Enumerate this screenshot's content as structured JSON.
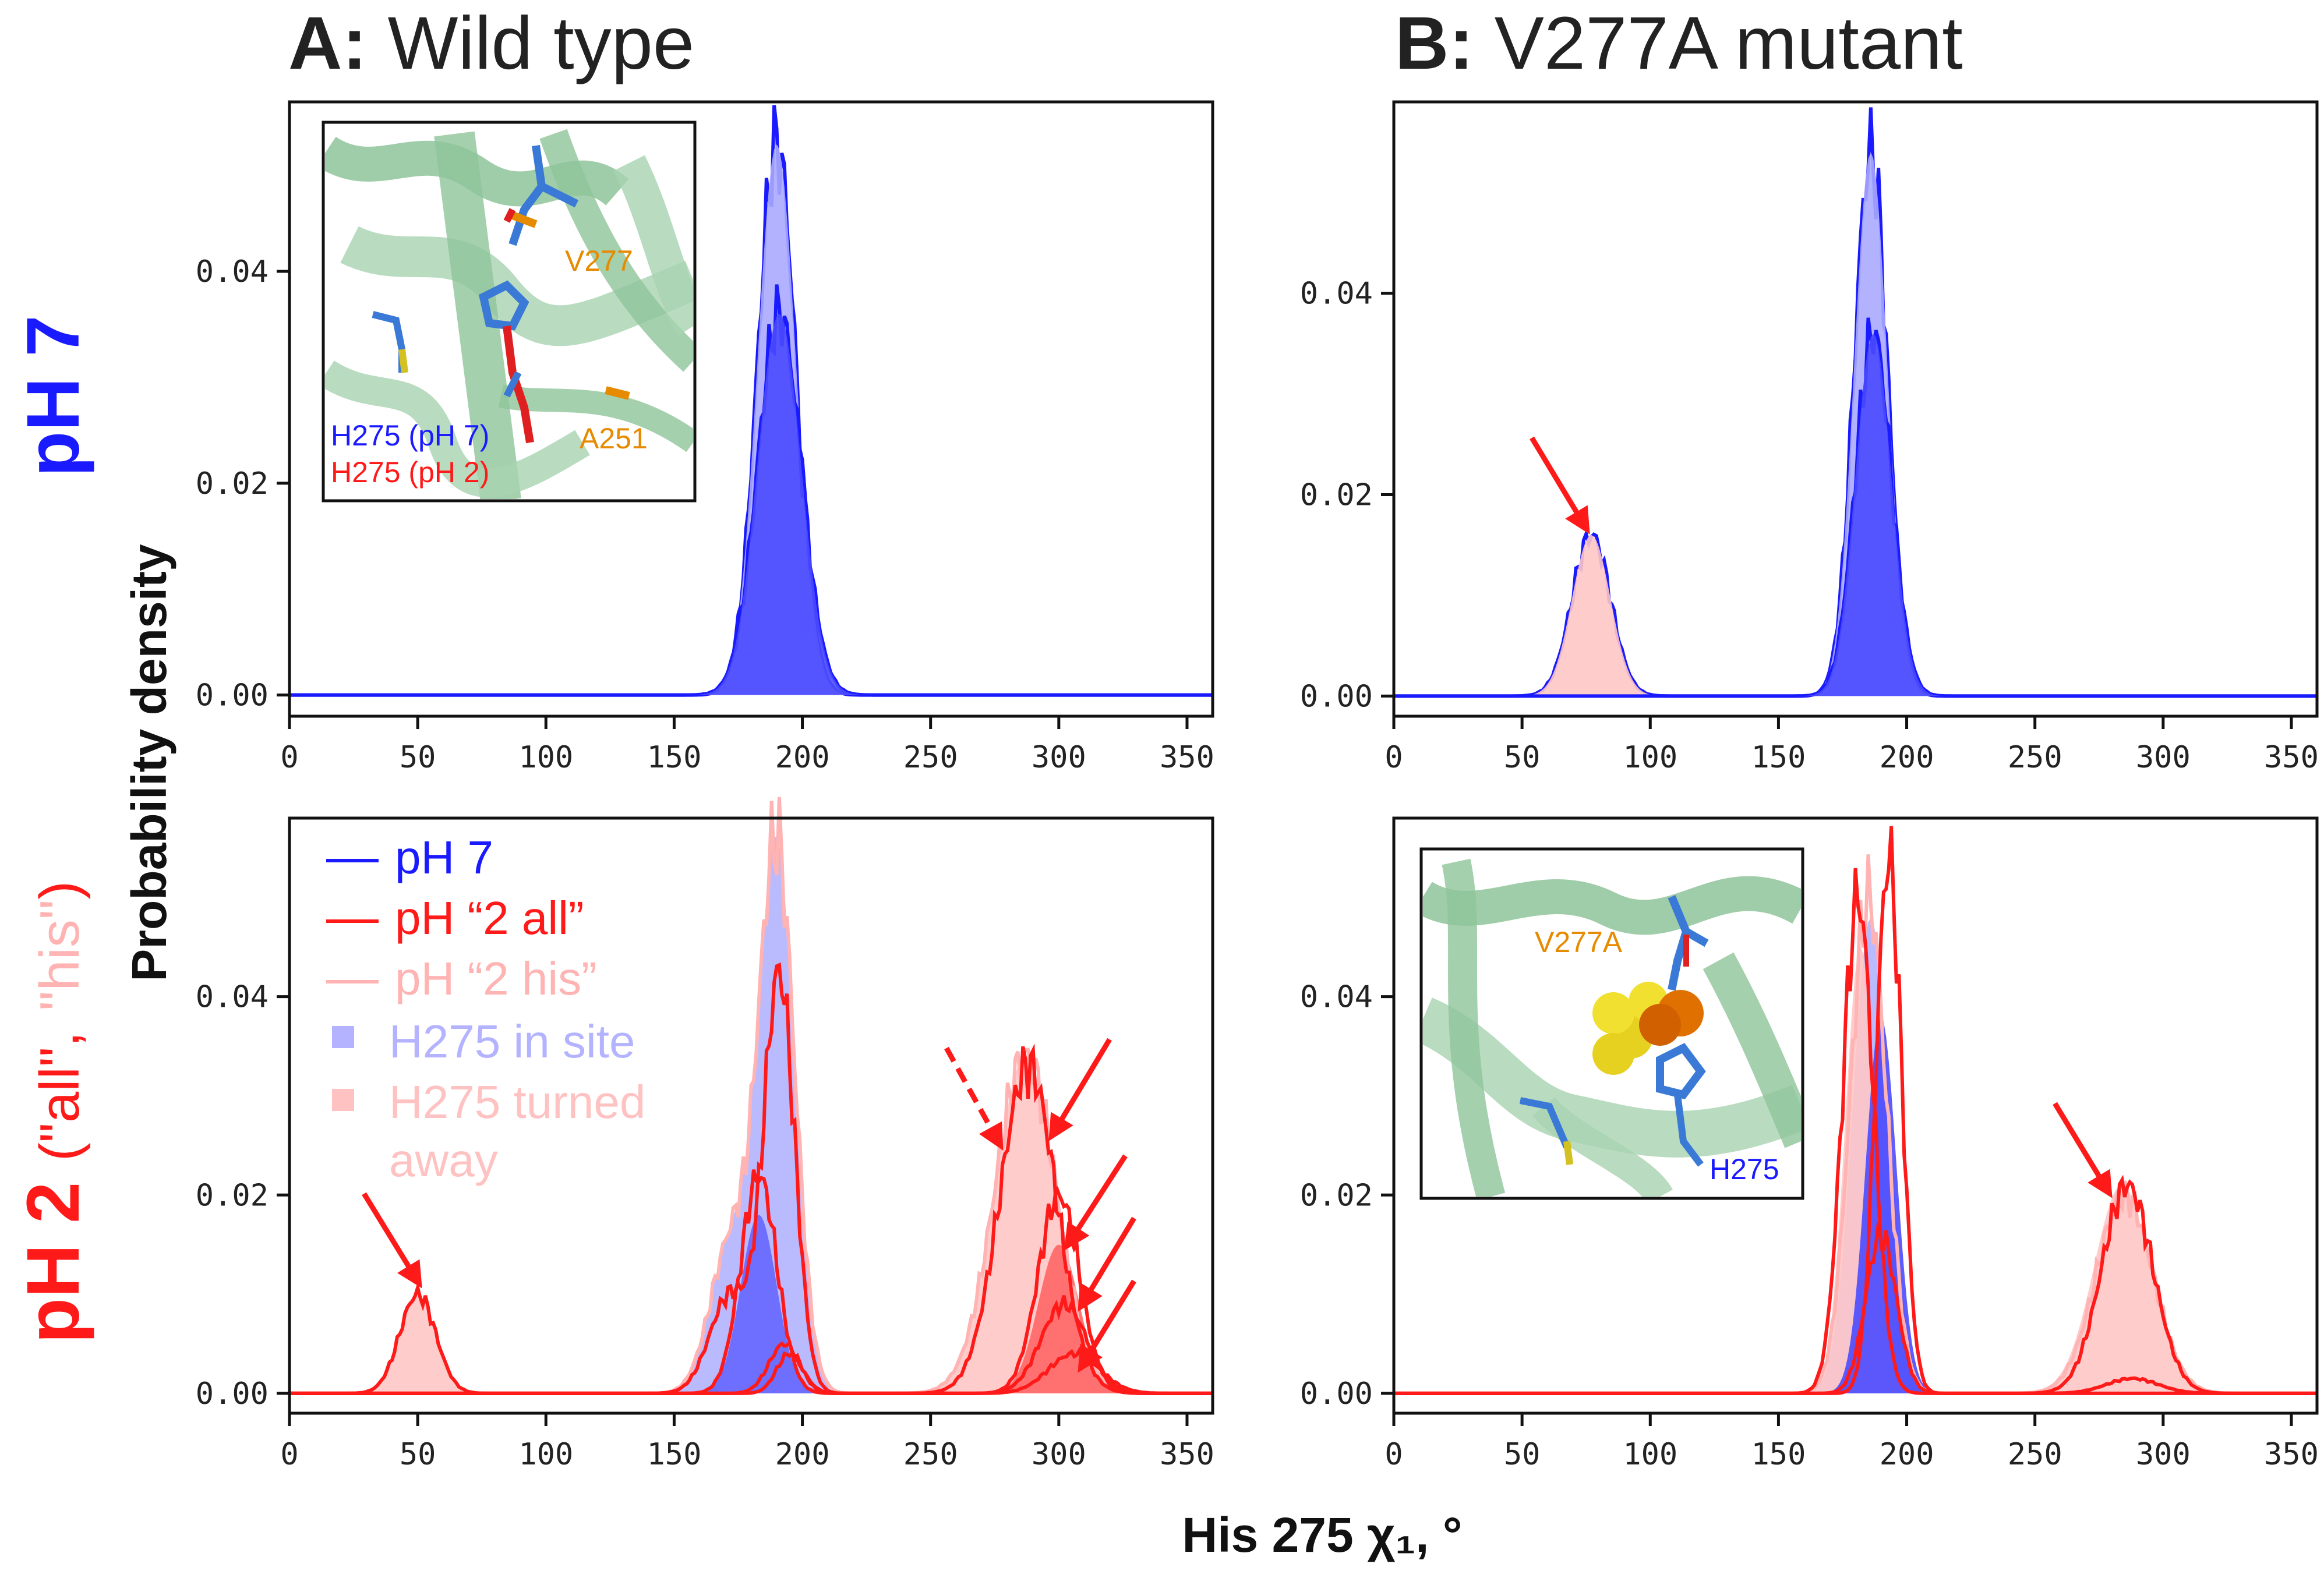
{
  "figure": {
    "panel_a_letter": "A:",
    "panel_a_title": "Wild type",
    "panel_b_letter": "B:",
    "panel_b_title": "V277A mutant",
    "row_top_label": "pH 7",
    "row_bottom_label_main": "pH 2",
    "row_bottom_label_paren_open": "(",
    "row_bottom_label_all": "\"all\"",
    "row_bottom_label_comma": ",",
    "row_bottom_label_his": "\"his\"",
    "row_bottom_label_paren_close": ")",
    "ylabel": "Probability density",
    "xlabel": "His 275 χ₁, °"
  },
  "legend": {
    "items": [
      {
        "label": "pH 7",
        "color": "#1a1aff",
        "kind": "line"
      },
      {
        "label": "pH “2 all”",
        "color": "#ff1a1a",
        "kind": "line"
      },
      {
        "label": "pH “2 his”",
        "color": "#ffb3b3",
        "kind": "line"
      },
      {
        "label": "H275 in site",
        "color": "#b3b3ff",
        "kind": "patch"
      },
      {
        "label": "H275 turned",
        "label2": "away",
        "color": "#ffc2c2",
        "kind": "patch"
      }
    ]
  },
  "insets": {
    "wt": {
      "label_v277": "V277",
      "label_a251": "A251",
      "label_h275_ph7": "H275 (pH 7)",
      "label_h275_ph2": "H275 (pH 2)"
    },
    "mut": {
      "label_v277a": "V277A",
      "label_h275": "H275"
    }
  },
  "colors": {
    "blue": "#1a1aff",
    "blue_fill": "#4a4aff",
    "blue_light": "#aaaaff",
    "red": "#ff1a1a",
    "pink": "#ffb3b3",
    "pink_fill": "#ffc7c7",
    "orange": "#e68a00",
    "green_protein": "#8fc49a"
  },
  "chart_data": [
    {
      "id": "wt_ph7",
      "type": "area",
      "title": "A: Wild type — pH 7",
      "xlim": [
        0,
        360
      ],
      "ylim": [
        -0.002,
        0.056
      ],
      "xticks": [
        0,
        50,
        100,
        150,
        200,
        250,
        300,
        350
      ],
      "yticks": [
        "0.00",
        "0.02",
        "0.04"
      ],
      "series": [
        {
          "name": "pH 7 total",
          "style": "line",
          "color": "#1a1aff",
          "peaks": [
            {
              "mu": 190,
              "sigma": 7.5,
              "amp": 0.052
            }
          ]
        },
        {
          "name": "H275 in site (pH 7)",
          "style": "fill",
          "color": "#aaaaff",
          "peaks": [
            {
              "mu": 190,
              "sigma": 7.5,
              "amp": 0.052
            }
          ]
        },
        {
          "name": "pH 7 secondary",
          "style": "line",
          "color": "#1a1aff",
          "peaks": [
            {
              "mu": 191,
              "sigma": 8.5,
              "amp": 0.036
            }
          ]
        },
        {
          "name": "pH 7 secondary fill",
          "style": "fill",
          "color": "#4a4aff",
          "peaks": [
            {
              "mu": 191,
              "sigma": 8.5,
              "amp": 0.036
            }
          ]
        }
      ]
    },
    {
      "id": "mut_ph7",
      "type": "area",
      "title": "B: V277A mutant — pH 7",
      "xlim": [
        0,
        360
      ],
      "ylim": [
        -0.002,
        0.059
      ],
      "xticks": [
        0,
        50,
        100,
        150,
        200,
        250,
        300,
        350
      ],
      "yticks": [
        "0.00",
        "0.02",
        "0.04"
      ],
      "series": [
        {
          "name": "pH 7 total",
          "style": "line",
          "color": "#1a1aff",
          "peaks": [
            {
              "mu": 77,
              "sigma": 7.5,
              "amp": 0.016
            },
            {
              "mu": 186,
              "sigma": 6.5,
              "amp": 0.054
            }
          ]
        },
        {
          "name": "H275 turned away (pH 7)",
          "style": "fill",
          "color": "#ffc7c7",
          "peaks": [
            {
              "mu": 77,
              "sigma": 7.5,
              "amp": 0.016
            }
          ]
        },
        {
          "name": "H275 in site (pH 7)",
          "style": "fill",
          "color": "#aaaaff",
          "peaks": [
            {
              "mu": 186,
              "sigma": 6.5,
              "amp": 0.054
            }
          ]
        },
        {
          "name": "pH 7 secondary",
          "style": "line",
          "color": "#1a1aff",
          "peaks": [
            {
              "mu": 187,
              "sigma": 7.0,
              "amp": 0.036
            }
          ]
        },
        {
          "name": "pH 7 secondary fill",
          "style": "fill",
          "color": "#4a4aff",
          "peaks": [
            {
              "mu": 187,
              "sigma": 7.0,
              "amp": 0.036
            }
          ]
        }
      ]
    },
    {
      "id": "wt_ph2",
      "type": "area",
      "title": "A: Wild type — pH 2",
      "xlim": [
        0,
        360
      ],
      "ylim": [
        -0.002,
        0.058
      ],
      "xticks": [
        0,
        50,
        100,
        150,
        200,
        250,
        300,
        350
      ],
      "yticks": [
        "0.00",
        "0.02",
        "0.04"
      ],
      "series": [
        {
          "name": "pH 2 his in site",
          "style": "fill",
          "color": "#b3b3ff",
          "peaks": [
            {
              "mu": 190,
              "sigma": 7,
              "amp": 0.055
            },
            {
              "mu": 172,
              "sigma": 8,
              "amp": 0.015
            }
          ]
        },
        {
          "name": "pH 2 his turned away",
          "style": "fill",
          "color": "#ffc7c7",
          "peaks": [
            {
              "mu": 287,
              "sigma": 12,
              "amp": 0.034
            },
            {
              "mu": 50,
              "sigma": 7,
              "amp": 0.01
            }
          ]
        },
        {
          "name": "pH 2 all in site",
          "style": "fill",
          "color": "#6666ff",
          "peaks": [
            {
              "mu": 183,
              "sigma": 7,
              "amp": 0.018
            }
          ]
        },
        {
          "name": "pH 2 all turned away",
          "style": "fill",
          "color": "#ff6666",
          "peaks": [
            {
              "mu": 300,
              "sigma": 8,
              "amp": 0.015
            }
          ]
        },
        {
          "name": "pH 2 his line",
          "style": "line",
          "color": "#ffb3b3",
          "peaks": [
            {
              "mu": 190,
              "sigma": 7,
              "amp": 0.055
            },
            {
              "mu": 287,
              "sigma": 12,
              "amp": 0.034
            },
            {
              "mu": 172,
              "sigma": 8,
              "amp": 0.015
            }
          ]
        },
        {
          "name": "pH 2 all line 1",
          "style": "line",
          "color": "#ff1a1a",
          "peaks": [
            {
              "mu": 191,
              "sigma": 6,
              "amp": 0.042
            },
            {
              "mu": 288,
              "sigma": 11,
              "amp": 0.033
            },
            {
              "mu": 50,
              "sigma": 7,
              "amp": 0.01
            },
            {
              "mu": 172,
              "sigma": 8,
              "amp": 0.01
            }
          ]
        },
        {
          "name": "pH 2 all line 2",
          "style": "line",
          "color": "#ff1a1a",
          "peaks": [
            {
              "mu": 183,
              "sigma": 7,
              "amp": 0.022
            },
            {
              "mu": 300,
              "sigma": 8,
              "amp": 0.02
            }
          ]
        },
        {
          "name": "pH 2 all line 3",
          "style": "line",
          "color": "#ff1a1a",
          "peaks": [
            {
              "mu": 193,
              "sigma": 6,
              "amp": 0.005
            },
            {
              "mu": 302,
              "sigma": 9,
              "amp": 0.009
            }
          ]
        },
        {
          "name": "pH 2 all line 4",
          "style": "line",
          "color": "#ff1a1a",
          "peaks": [
            {
              "mu": 195,
              "sigma": 5,
              "amp": 0.004
            },
            {
              "mu": 306,
              "sigma": 10,
              "amp": 0.004
            }
          ]
        }
      ]
    },
    {
      "id": "mut_ph2",
      "type": "area",
      "title": "B: V277A mutant — pH 2",
      "xlim": [
        0,
        360
      ],
      "ylim": [
        -0.002,
        0.058
      ],
      "xticks": [
        0,
        50,
        100,
        150,
        200,
        250,
        300,
        350
      ],
      "yticks": [
        "0.00",
        "0.02",
        "0.04"
      ],
      "series": [
        {
          "name": "pH 2 his in site",
          "style": "fill",
          "color": "#b3b3ff",
          "peaks": [
            {
              "mu": 186,
              "sigma": 7,
              "amp": 0.048
            }
          ]
        },
        {
          "name": "pH 2 his turned away",
          "style": "fill",
          "color": "#ffc7c7",
          "peaks": [
            {
              "mu": 284,
              "sigma": 11,
              "amp": 0.021
            },
            {
              "mu": 182,
              "sigma": 6,
              "amp": 0.045
            }
          ]
        },
        {
          "name": "pH 2 all in site",
          "style": "fill",
          "color": "#4a4aff",
          "peaks": [
            {
              "mu": 190,
              "sigma": 6,
              "amp": 0.038
            }
          ]
        },
        {
          "name": "pH 2 his line",
          "style": "line",
          "color": "#ffb3b3",
          "peaks": [
            {
              "mu": 185,
              "sigma": 7,
              "amp": 0.05
            },
            {
              "mu": 285,
              "sigma": 11,
              "amp": 0.02
            }
          ]
        },
        {
          "name": "pH 2 all line 1",
          "style": "line",
          "color": "#ff1a1a",
          "peaks": [
            {
              "mu": 181,
              "sigma": 6,
              "amp": 0.05
            },
            {
              "mu": 286,
              "sigma": 10,
              "amp": 0.021
            }
          ]
        },
        {
          "name": "pH 2 all line 2",
          "style": "line",
          "color": "#ff1a1a",
          "peaks": [
            {
              "mu": 193,
              "sigma": 5,
              "amp": 0.054
            }
          ]
        },
        {
          "name": "pH 2 all line 3",
          "style": "line",
          "color": "#ff1a1a",
          "peaks": [
            {
              "mu": 190,
              "sigma": 6,
              "amp": 0.016
            },
            {
              "mu": 288,
              "sigma": 10,
              "amp": 0.0015
            }
          ]
        }
      ]
    }
  ]
}
